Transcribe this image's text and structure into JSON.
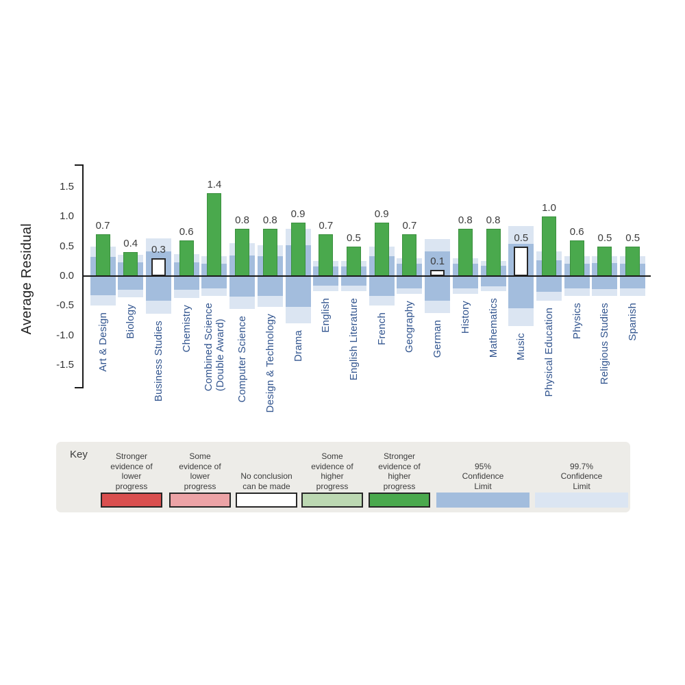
{
  "chart_data": {
    "type": "bar",
    "title": "",
    "ylabel": "Average Residual",
    "xlabel": "",
    "ylim": [
      -1.9,
      1.9
    ],
    "grid": false,
    "legend_position": "bottom",
    "ytick_labels": [
      "1.5",
      "1.0",
      "0.5",
      "0.0",
      "-0.5",
      "-1.0",
      "-1.5"
    ],
    "ytick_values": [
      1.5,
      1.0,
      0.5,
      0.0,
      -0.5,
      -1.0,
      -1.5
    ],
    "subjects": [
      {
        "name": "Art & Design",
        "lines": [
          "Art & Design"
        ],
        "value": 0.7,
        "label": "0.7",
        "style": "strong_higher",
        "ci95": 0.32,
        "ci997": 0.5
      },
      {
        "name": "Biology",
        "lines": [
          "Biology"
        ],
        "value": 0.4,
        "label": "0.4",
        "style": "strong_higher",
        "ci95": 0.23,
        "ci997": 0.36
      },
      {
        "name": "Business Studies",
        "lines": [
          "Business Studies"
        ],
        "value": 0.3,
        "label": "0.3",
        "style": "no_conclusion",
        "ci95": 0.42,
        "ci997": 0.63
      },
      {
        "name": "Chemistry",
        "lines": [
          "Chemistry"
        ],
        "value": 0.6,
        "label": "0.6",
        "style": "strong_higher",
        "ci95": 0.23,
        "ci997": 0.37
      },
      {
        "name": "Combined Science (Double Award)",
        "lines": [
          "Combined Science",
          "(Double Award)"
        ],
        "value": 1.4,
        "label": "1.4",
        "style": "strong_higher",
        "ci95": 0.21,
        "ci997": 0.33
      },
      {
        "name": "Computer Science",
        "lines": [
          "Computer Science"
        ],
        "value": 0.8,
        "label": "0.8",
        "style": "strong_higher",
        "ci95": 0.35,
        "ci997": 0.55
      },
      {
        "name": "Design & Technology",
        "lines": [
          "Design & Technology"
        ],
        "value": 0.8,
        "label": "0.8",
        "style": "strong_higher",
        "ci95": 0.33,
        "ci997": 0.52
      },
      {
        "name": "Drama",
        "lines": [
          "Drama"
        ],
        "value": 0.9,
        "label": "0.9",
        "style": "strong_higher",
        "ci95": 0.52,
        "ci997": 0.8
      },
      {
        "name": "English",
        "lines": [
          "English"
        ],
        "value": 0.7,
        "label": "0.7",
        "style": "strong_higher",
        "ci95": 0.16,
        "ci997": 0.25
      },
      {
        "name": "English Literature",
        "lines": [
          "English Literature"
        ],
        "value": 0.5,
        "label": "0.5",
        "style": "strong_higher",
        "ci95": 0.16,
        "ci997": 0.25
      },
      {
        "name": "French",
        "lines": [
          "French"
        ],
        "value": 0.9,
        "label": "0.9",
        "style": "strong_higher",
        "ci95": 0.34,
        "ci997": 0.5
      },
      {
        "name": "Geography",
        "lines": [
          "Geography"
        ],
        "value": 0.7,
        "label": "0.7",
        "style": "strong_higher",
        "ci95": 0.21,
        "ci997": 0.3
      },
      {
        "name": "German",
        "lines": [
          "German"
        ],
        "value": 0.1,
        "label": "0.1",
        "style": "no_conclusion",
        "ci95": 0.42,
        "ci997": 0.62
      },
      {
        "name": "History",
        "lines": [
          "History"
        ],
        "value": 0.8,
        "label": "0.8",
        "style": "strong_higher",
        "ci95": 0.21,
        "ci997": 0.3
      },
      {
        "name": "Mathematics",
        "lines": [
          "Mathematics"
        ],
        "value": 0.8,
        "label": "0.8",
        "style": "strong_higher",
        "ci95": 0.17,
        "ci997": 0.25
      },
      {
        "name": "Music",
        "lines": [
          "Music"
        ],
        "value": 0.5,
        "label": "0.5",
        "style": "no_conclusion",
        "ci95": 0.54,
        "ci997": 0.84
      },
      {
        "name": "Physical Education",
        "lines": [
          "Physical Education"
        ],
        "value": 1.0,
        "label": "1.0",
        "style": "strong_higher",
        "ci95": 0.27,
        "ci997": 0.42
      },
      {
        "name": "Physics",
        "lines": [
          "Physics"
        ],
        "value": 0.6,
        "label": "0.6",
        "style": "strong_higher",
        "ci95": 0.21,
        "ci997": 0.33
      },
      {
        "name": "Religious Studies",
        "lines": [
          "Religious Studies"
        ],
        "value": 0.5,
        "label": "0.5",
        "style": "strong_higher",
        "ci95": 0.22,
        "ci997": 0.34
      },
      {
        "name": "Spanish",
        "lines": [
          "Spanish"
        ],
        "value": 0.5,
        "label": "0.5",
        "style": "strong_higher",
        "ci95": 0.21,
        "ci997": 0.33
      }
    ]
  },
  "colors": {
    "strong_lower": "#d94f4f",
    "some_lower": "#eca3a6",
    "no_conclusion": "#ffffff",
    "some_higher": "#bcd8b2",
    "strong_higher": "#4aa94d",
    "ci95": "#a3bddd",
    "ci997": "#dbe5f2",
    "axis": "#1a1a1a",
    "subject_label": "#31548e",
    "text": "#3b3b3b",
    "key_background": "#edece8",
    "swatch_border": "#262626"
  },
  "key": {
    "title": "Key",
    "items": [
      {
        "lines": [
          "Stronger",
          "evidence of",
          "lower",
          "progress"
        ],
        "swatch": "strong_lower",
        "bordered": true
      },
      {
        "lines": [
          "Some",
          "evidence of",
          "lower",
          "progress"
        ],
        "swatch": "some_lower",
        "bordered": true
      },
      {
        "lines": [
          "No conclusion",
          "can be made"
        ],
        "swatch": "no_conclusion",
        "bordered": true
      },
      {
        "lines": [
          "Some",
          "evidence of",
          "higher",
          "progress"
        ],
        "swatch": "some_higher",
        "bordered": true
      },
      {
        "lines": [
          "Stronger",
          "evidence of",
          "higher",
          "progress"
        ],
        "swatch": "strong_higher",
        "bordered": true
      },
      {
        "lines": [
          "95%",
          "Confidence",
          "Limit"
        ],
        "swatch": "ci95",
        "bordered": false
      },
      {
        "lines": [
          "99.7%",
          "Confidence",
          "Limit"
        ],
        "swatch": "ci997",
        "bordered": false
      }
    ]
  }
}
